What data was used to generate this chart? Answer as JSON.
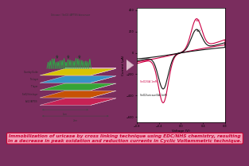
{
  "bg_color": "#7a2d5e",
  "left_panel_bg": "#c0c0c0",
  "title_text": "Immobilization of uricase by cross linking technique using EDC/NHS chemistry, resulting\nin a decrease in peak oxidation and reduction currents in Cyclic Voltammetric technique.",
  "title_fontsize": 4.2,
  "title_color": "#cc0033",
  "title_box_color": "#f0a0b8",
  "title_box_edge": "#cc0033",
  "layer_colors": [
    "#cc2255",
    "#cc5500",
    "#33aa33",
    "#3399cc",
    "#ddcc00"
  ],
  "layer_labels": [
    "SnO2/APTES",
    "SnO2 thin layer",
    "Ti layer",
    "Tin layer",
    "Overlay Oxide"
  ],
  "spike_color": "#22bb44",
  "arrow_color": "#cc88aa",
  "cv_line1_color": "#cc0044",
  "cv_line2_color": "#111111",
  "xlabel": "Voltage (V)",
  "ylabel": "Current (μA)",
  "xlim": [
    -0.8,
    0.8
  ],
  "ylim": [
    -650,
    420
  ],
  "xticks": [
    -0.8,
    -0.4,
    0.0,
    0.4,
    0.8
  ],
  "yticks": [
    -600,
    -400,
    -200,
    0,
    200,
    400
  ],
  "legend1": "SnO2/UA 1mM",
  "legend2": "SnO2/uricase/UA 1mM",
  "top_label": "Uricase / SnO2 /APTES biosensor"
}
